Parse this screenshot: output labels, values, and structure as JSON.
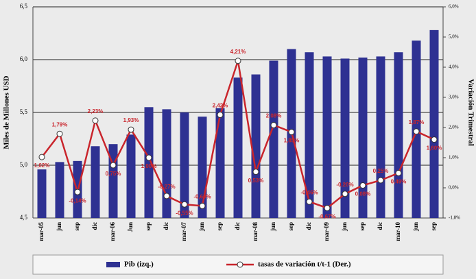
{
  "chart_data": {
    "type": "bar_line",
    "y_label": "Miles de Millones USD",
    "y2_label": "Variación Trimestral",
    "categories": [
      "mar-05",
      "jun",
      "sep",
      "dic",
      "mar-06",
      "Jun",
      "sep",
      "dic",
      "mar-07",
      "jun",
      "sep",
      "dic",
      "mar-08",
      "jun",
      "sep",
      "dic",
      "mar-09",
      "jun",
      "sep",
      "dic",
      "mar-10",
      "jun",
      "sep"
    ],
    "series": [
      {
        "name": "Pib (izq.)",
        "color": "#2e3192",
        "type": "bar",
        "values": [
          4.96,
          5.03,
          5.04,
          5.18,
          5.2,
          5.29,
          5.55,
          5.53,
          5.5,
          5.46,
          5.54,
          5.83,
          5.86,
          5.99,
          6.1,
          6.07,
          6.03,
          6.01,
          6.02,
          6.03,
          6.07,
          6.18,
          6.28
        ]
      },
      {
        "name": "tasas de variación t/t-1 (Der.)",
        "color": "#c9252c",
        "type": "line",
        "axis": "y2",
        "values": [
          1.02,
          1.79,
          -0.14,
          2.23,
          0.75,
          1.93,
          1.0,
          -0.27,
          -0.55,
          -0.6,
          2.42,
          4.21,
          0.53,
          2.08,
          1.85,
          -0.46,
          -0.67,
          -0.2,
          0.08,
          0.25,
          0.49,
          1.87,
          1.6
        ],
        "value_labels": [
          "1,02%",
          "1,79%",
          "-0,14%",
          "2,23%",
          "0,75%",
          "1,93%",
          "1,00%",
          "-0,27%",
          "-0,55%",
          "-0,60%",
          "2,42%",
          "4,21%",
          "0,53%",
          "2,08%",
          "1,85%",
          "-0,46%",
          "-0,67%",
          "-0,20%",
          "0,08%",
          "0,25%",
          "0,49%",
          "1,87%",
          "1,60%"
        ]
      }
    ],
    "ylim": [
      4.5,
      6.5
    ],
    "yticks": [
      {
        "value": 4.5,
        "label": "4,5"
      },
      {
        "value": 5.0,
        "label": "5,0"
      },
      {
        "value": 5.5,
        "label": "5,5"
      },
      {
        "value": 6.0,
        "label": "6,0"
      },
      {
        "value": 6.5,
        "label": "6,5"
      }
    ],
    "y2lim": [
      -1.0,
      6.0
    ],
    "y2ticks": [
      {
        "value": -1,
        "label": "-1,0%"
      },
      {
        "value": 0,
        "label": "0,0%"
      },
      {
        "value": 1,
        "label": "1,0%"
      },
      {
        "value": 2,
        "label": "2,0%"
      },
      {
        "value": 3,
        "label": "3,0%"
      },
      {
        "value": 4,
        "label": "4,0%"
      },
      {
        "value": 5,
        "label": "5,0%"
      },
      {
        "value": 6,
        "label": "6,0%"
      }
    ],
    "grid": true
  }
}
